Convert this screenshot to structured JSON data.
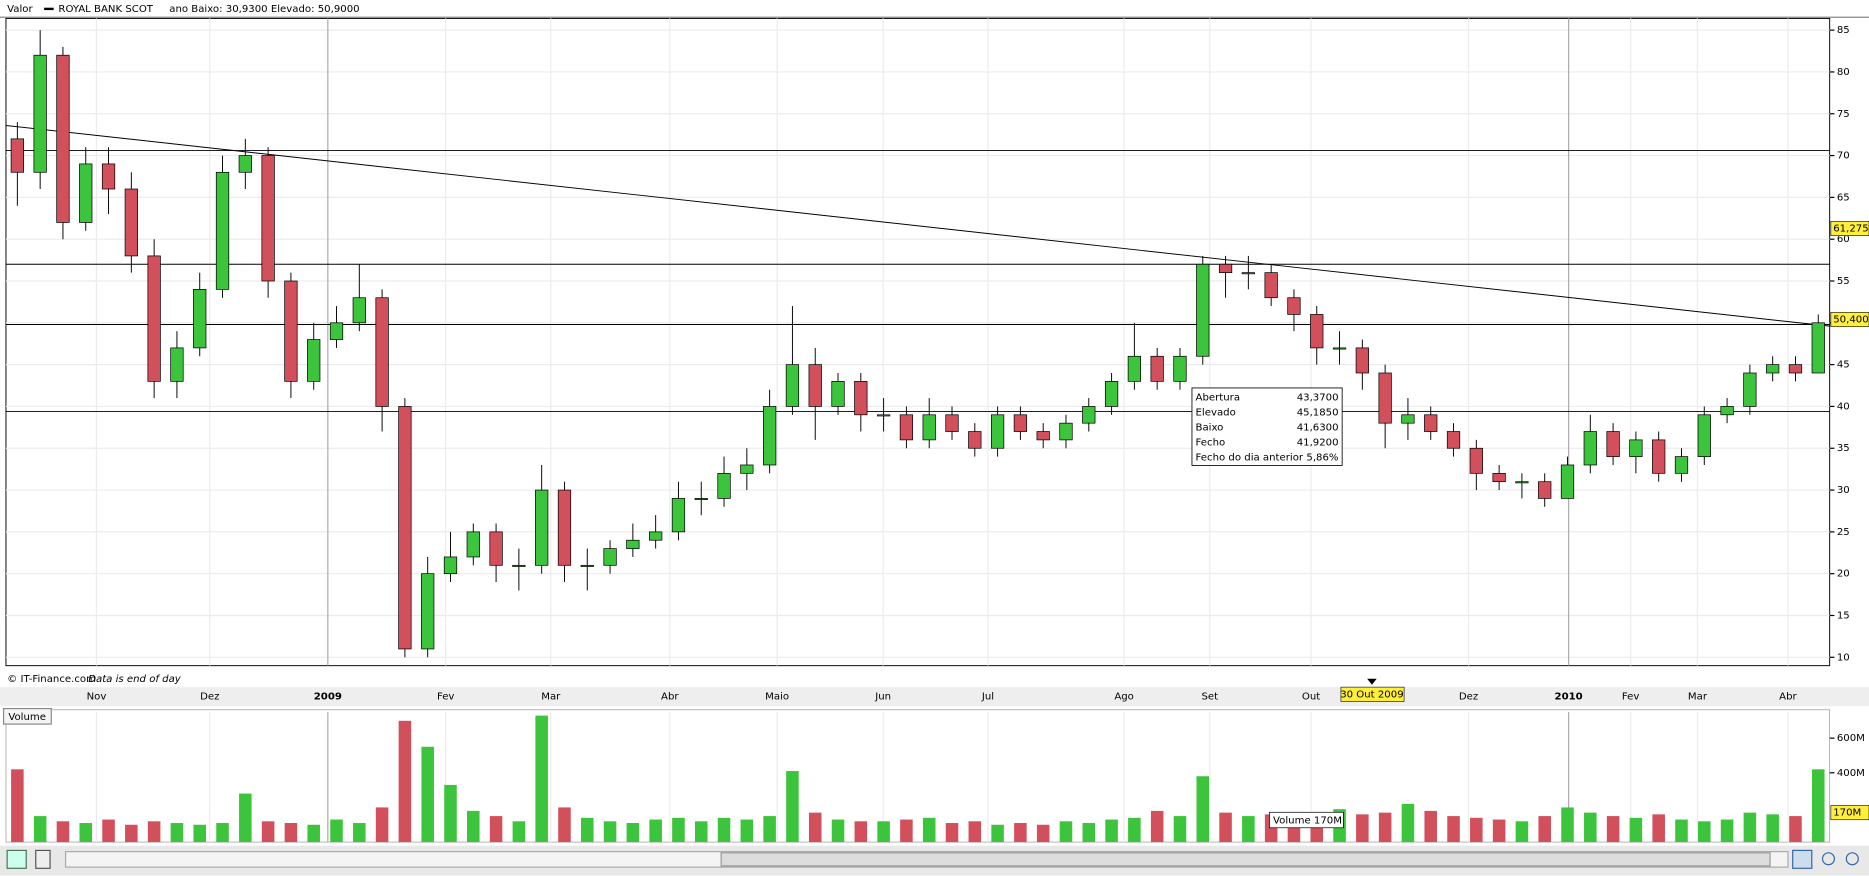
{
  "header": {
    "label": "Valor",
    "name": "ROYAL BANK SCOT",
    "range": "ano Baixo: 30,9300 Elevado: 50,9000"
  },
  "footer": {
    "source": "© IT-Finance.com",
    "note": "Data is end of day"
  },
  "chart_data": {
    "type": "candlestick",
    "open": [
      72,
      68,
      82,
      62,
      69,
      66,
      58,
      43,
      47,
      54,
      68,
      70,
      55,
      43,
      48,
      50,
      53,
      40,
      11,
      20,
      22,
      25,
      21,
      21,
      30,
      21,
      21,
      23,
      24,
      25,
      29,
      29,
      32,
      33,
      40,
      45,
      40,
      43,
      39,
      39,
      36,
      39,
      37,
      35,
      39,
      37,
      36,
      38,
      40,
      43,
      46,
      43,
      46,
      57,
      56,
      56,
      53,
      51,
      47,
      47,
      44,
      38,
      39,
      37,
      35,
      32,
      31,
      31,
      29,
      33,
      37,
      34,
      36,
      32,
      34,
      39,
      40,
      44,
      45,
      44
    ],
    "high": [
      74,
      85,
      83,
      71,
      71,
      68,
      60,
      49,
      56,
      70,
      72,
      71,
      56,
      50,
      52,
      57,
      54,
      41,
      22,
      25,
      26,
      26,
      23,
      33,
      31,
      23,
      24,
      26,
      27,
      31,
      31,
      34,
      35,
      42,
      52,
      47,
      44,
      44,
      41,
      40,
      41,
      40,
      38,
      40,
      40,
      38,
      39,
      41,
      44,
      50,
      47,
      47,
      58,
      58,
      58,
      57,
      54,
      52,
      49,
      48,
      45,
      41,
      40,
      38,
      36,
      33,
      32,
      32,
      34,
      39,
      38,
      37,
      37,
      35,
      40,
      41,
      45,
      46,
      46,
      51
    ],
    "low": [
      64,
      66,
      60,
      61,
      63,
      56,
      41,
      41,
      46,
      53,
      66,
      53,
      41,
      42,
      47,
      49,
      37,
      10,
      10,
      19,
      21,
      19,
      18,
      20,
      19,
      18,
      20,
      22,
      23,
      24,
      27,
      28,
      30,
      32,
      39,
      36,
      39,
      37,
      37,
      35,
      35,
      36,
      34,
      34,
      36,
      35,
      35,
      37,
      39,
      42,
      42,
      42,
      45,
      53,
      54,
      52,
      49,
      45,
      45,
      42,
      35,
      36,
      36,
      34,
      30,
      30,
      29,
      28,
      29,
      32,
      33,
      32,
      31,
      31,
      33,
      38,
      39,
      43,
      43,
      44
    ],
    "close": [
      68,
      82,
      62,
      69,
      66,
      58,
      43,
      47,
      54,
      68,
      70,
      55,
      43,
      48,
      50,
      53,
      40,
      11,
      20,
      22,
      25,
      21,
      21,
      30,
      21,
      21,
      23,
      24,
      25,
      29,
      29,
      32,
      33,
      40,
      45,
      40,
      43,
      39,
      39,
      36,
      39,
      37,
      35,
      39,
      37,
      36,
      38,
      40,
      43,
      46,
      43,
      46,
      57,
      56,
      56,
      53,
      51,
      47,
      47,
      44,
      38,
      39,
      37,
      35,
      32,
      31,
      31,
      29,
      33,
      37,
      34,
      36,
      32,
      34,
      39,
      40,
      44,
      45,
      44,
      50
    ],
    "volume": [
      420,
      150,
      120,
      110,
      130,
      100,
      120,
      110,
      100,
      110,
      280,
      120,
      110,
      100,
      130,
      110,
      200,
      700,
      550,
      330,
      180,
      150,
      120,
      730,
      200,
      140,
      120,
      110,
      130,
      140,
      120,
      140,
      130,
      150,
      410,
      170,
      130,
      120,
      120,
      130,
      140,
      110,
      120,
      100,
      110,
      100,
      120,
      110,
      130,
      140,
      180,
      150,
      380,
      170,
      150,
      160,
      140,
      170,
      190,
      160,
      170,
      220,
      180,
      150,
      140,
      130,
      120,
      150,
      200,
      170,
      150,
      140,
      160,
      130,
      120,
      130,
      170,
      160,
      150,
      420
    ],
    "up_color": "#3cc43c",
    "down_color": "#d2505c",
    "ylim": [
      9,
      86.4
    ],
    "yticks": [
      10,
      15,
      20,
      25,
      30,
      35,
      40,
      45,
      50,
      55,
      60,
      65,
      70,
      75,
      80,
      85
    ],
    "xlim": [
      0,
      80
    ],
    "xticks": [
      {
        "value": 3.97,
        "label": "Nov"
      },
      {
        "value": 8.94,
        "label": "Dez"
      },
      {
        "value": 14.12,
        "label": "2009"
      },
      {
        "value": 19.29,
        "label": "Fev"
      },
      {
        "value": 23.9,
        "label": "Mar"
      },
      {
        "value": 29.12,
        "label": "Abr"
      },
      {
        "value": 33.83,
        "label": "Maio"
      },
      {
        "value": 38.48,
        "label": "Jun"
      },
      {
        "value": 43.08,
        "label": "Jul"
      },
      {
        "value": 49.05,
        "label": "Ago"
      },
      {
        "value": 52.81,
        "label": "Set"
      },
      {
        "value": 57.25,
        "label": "Out"
      },
      {
        "value": 64.16,
        "label": "Dez"
      },
      {
        "value": 68.55,
        "label": "2010"
      },
      {
        "value": 71.27,
        "label": "Fev"
      },
      {
        "value": 74.2,
        "label": "Mar"
      },
      {
        "value": 78.17,
        "label": "Abr"
      }
    ],
    "hlines": [
      70.6,
      57,
      49.8,
      39.4
    ],
    "trendline": [
      73.6,
      49.6
    ],
    "cursor_price": {
      "value": 61.275,
      "label": "61,275"
    },
    "last_price": {
      "value": 50.4,
      "label": "50,4000"
    },
    "cursor_date": {
      "value": 59.92,
      "label": "30 Out 2009"
    },
    "tooltip": [
      [
        "Abertura",
        "43,3700"
      ],
      [
        "Elevado",
        "45,1850"
      ],
      [
        "Baixo",
        "41,6300"
      ],
      [
        "Fecho",
        "41,9200"
      ],
      [
        "Fecho do dia anterior",
        "5,86%"
      ]
    ],
    "volume_axis": {
      "title": "Volume",
      "ylim": [
        0,
        750
      ],
      "yticks": [
        {
          "value": 400,
          "label": "400M"
        },
        {
          "value": 600,
          "label": "600M"
        }
      ],
      "last": {
        "value": 170,
        "label": "170M"
      },
      "tooltip": "Volume 170M"
    }
  }
}
